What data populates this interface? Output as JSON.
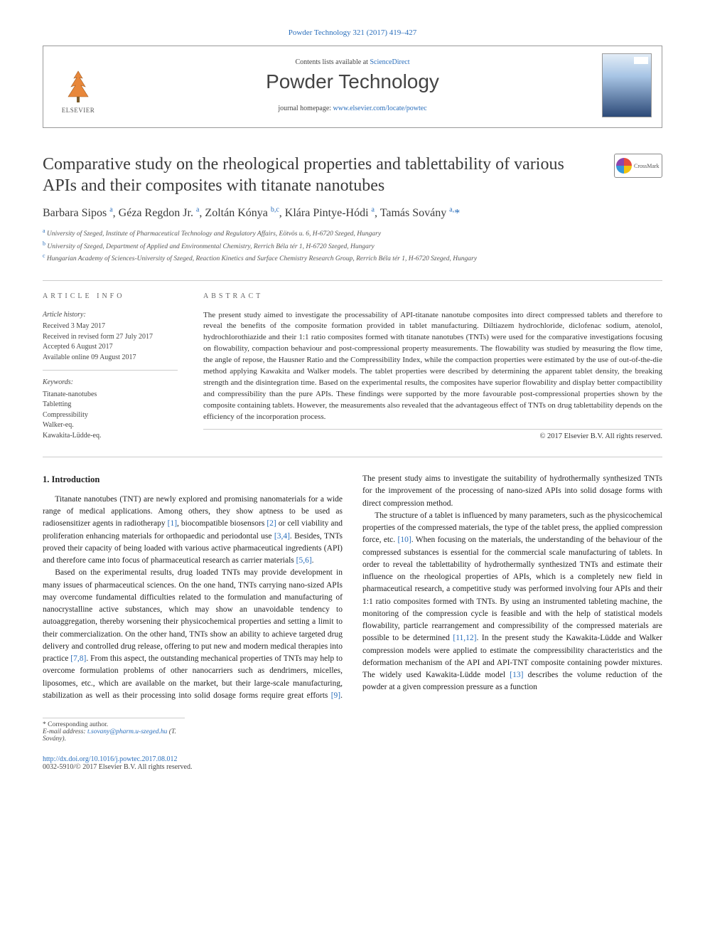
{
  "colors": {
    "link": "#2a6ebb",
    "text": "#333333",
    "muted": "#555555",
    "rule": "#cccccc",
    "background": "#ffffff"
  },
  "typography": {
    "body_font": "Times New Roman",
    "journal_font": "Arial",
    "title_size_pt": 24,
    "body_size_pt": 11.5,
    "abstract_size_pt": 11,
    "info_size_pt": 10
  },
  "citation": "Powder Technology 321 (2017) 419–427",
  "header": {
    "publisher": "ELSEVIER",
    "contents_prefix": "Contents lists available at ",
    "contents_link": "ScienceDirect",
    "journal": "Powder Technology",
    "homepage_label": "journal homepage: ",
    "homepage_url": "www.elsevier.com/locate/powtec",
    "cover_label": "POWDER TECHNOLOGY"
  },
  "crossmark_label": "CrossMark",
  "title": "Comparative study on the rheological properties and tablettability of various APIs and their composites with titanate nanotubes",
  "authors_html": "Barbara Sipos <sup>a</sup>, Géza Regdon Jr. <sup>a</sup>, Zoltán Kónya <sup>b,c</sup>, Klára Pintye-Hódi <sup>a</sup>, Tamás Sovány <sup>a,</sup>",
  "corresponding_marker": "*",
  "affiliations": [
    {
      "sup": "a",
      "text": "University of Szeged, Institute of Pharmaceutical Technology and Regulatory Affairs, Eötvös u. 6, H-6720 Szeged, Hungary"
    },
    {
      "sup": "b",
      "text": "University of Szeged, Department of Applied and Environmental Chemistry, Rerrich Béla tér 1, H-6720 Szeged, Hungary"
    },
    {
      "sup": "c",
      "text": "Hungarian Academy of Sciences-University of Szeged, Reaction Kinetics and Surface Chemistry Research Group, Rerrich Béla tér 1, H-6720 Szeged, Hungary"
    }
  ],
  "info_label": "article info",
  "abstract_label": "abstract",
  "history": {
    "head": "Article history:",
    "items": [
      "Received 3 May 2017",
      "Received in revised form 27 July 2017",
      "Accepted 6 August 2017",
      "Available online 09 August 2017"
    ]
  },
  "keywords": {
    "head": "Keywords:",
    "items": [
      "Titanate-nanotubes",
      "Tabletting",
      "Compressibility",
      "Walker-eq.",
      "Kawakita-Lüdde-eq."
    ]
  },
  "abstract": "The present study aimed to investigate the processability of API-titanate nanotube composites into direct compressed tablets and therefore to reveal the benefits of the composite formation provided in tablet manufacturing. Diltiazem hydrochloride, diclofenac sodium, atenolol, hydrochlorothiazide and their 1:1 ratio composites formed with titanate nanotubes (TNTs) were used for the comparative investigations focusing on flowability, compaction behaviour and post-compressional property measurements. The flowability was studied by measuring the flow time, the angle of repose, the Hausner Ratio and the Compressibility Index, while the compaction properties were estimated by the use of out-of-the-die method applying Kawakita and Walker models. The tablet properties were described by determining the apparent tablet density, the breaking strength and the disintegration time. Based on the experimental results, the composites have superior flowability and display better compactibility and compressibility than the pure APIs. These findings were supported by the more favourable post-compressional properties shown by the composite containing tablets. However, the measurements also revealed that the advantageous effect of TNTs on drug tablettability depends on the efficiency of the incorporation process.",
  "copyright": "© 2017 Elsevier B.V. All rights reserved.",
  "section_heading": "1. Introduction",
  "body": {
    "p1_a": "Titanate nanotubes (TNT) are newly explored and promising nanomaterials for a wide range of medical applications. Among others, they show aptness to be used as radiosensitizer agents in radiotherapy ",
    "r1": "[1]",
    "p1_b": ", biocompatible biosensors ",
    "r2": "[2]",
    "p1_c": " or cell viability and proliferation enhancing materials for orthopaedic and periodontal use ",
    "r34": "[3,4]",
    "p1_d": ". Besides, TNTs proved their capacity of being loaded with various active pharmaceutical ingredients (API) and therefore came into focus of pharmaceutical research as carrier materials ",
    "r56": "[5,6]",
    "p1_e": ".",
    "p2_a": "Based on the experimental results, drug loaded TNTs may provide development in many issues of pharmaceutical sciences. On the one hand, TNTs carrying nano-sized APIs may overcome fundamental difficulties related to the formulation and manufacturing of nanocrystalline active substances, which may show an unavoidable tendency to autoaggregation, thereby worsening their physicochemical properties and setting a limit to their commercialization. On the other hand, TNTs show an ability to achieve targeted drug delivery and controlled drug release, offering to put new and modern medical therapies into practice ",
    "r78": "[7,8]",
    "p2_b": ". From this aspect, the outstanding mechanical properties of TNTs may help to overcome formulation problems of other nanocarriers such as dendrimers, micelles, liposomes, etc., which are available on the market, but their large-scale manufacturing, stabilization as well as their processing into solid dosage forms require great efforts ",
    "r9": "[9]",
    "p2_c": ". The present study aims to investigate the suitability of hydrothermally synthesized TNTs for the improvement of the processing of nano-sized APIs into solid dosage forms with direct compression method.",
    "p3_a": "The structure of a tablet is influenced by many parameters, such as the physicochemical properties of the compressed materials, the type of the tablet press, the applied compression force, etc. ",
    "r10": "[10]",
    "p3_b": ". When focusing on the materials, the understanding of the behaviour of the compressed substances is essential for the commercial scale manufacturing of tablets. In order to reveal the tablettability of hydrothermally synthesized TNTs and estimate their influence on the rheological properties of APIs, which is a completely new field in pharmaceutical research, a competitive study was performed involving four APIs and their 1:1 ratio composites formed with TNTs. By using an instrumented tableting machine, the monitoring of the compression cycle is feasible and with the help of statistical models flowability, particle rearrangement and compressibility of the compressed materials are possible to be determined ",
    "r1112": "[11,12]",
    "p3_c": ". In the present study the Kawakita-Lüdde and Walker compression models were applied to estimate the compressibility characteristics and the deformation mechanism of the API and API-TNT composite containing powder mixtures. The widely used Kawakita-Lüdde model ",
    "r13": "[13]",
    "p3_d": " describes the volume reduction of the powder at a given compression pressure as a function"
  },
  "footer": {
    "corr_label": "* Corresponding author.",
    "email_label": "E-mail address:",
    "email": "t.sovany@pharm.u-szeged.hu",
    "email_name": "(T. Sovány).",
    "doi": "http://dx.doi.org/10.1016/j.powtec.2017.08.012",
    "issn": "0032-5910/© 2017 Elsevier B.V. All rights reserved."
  }
}
